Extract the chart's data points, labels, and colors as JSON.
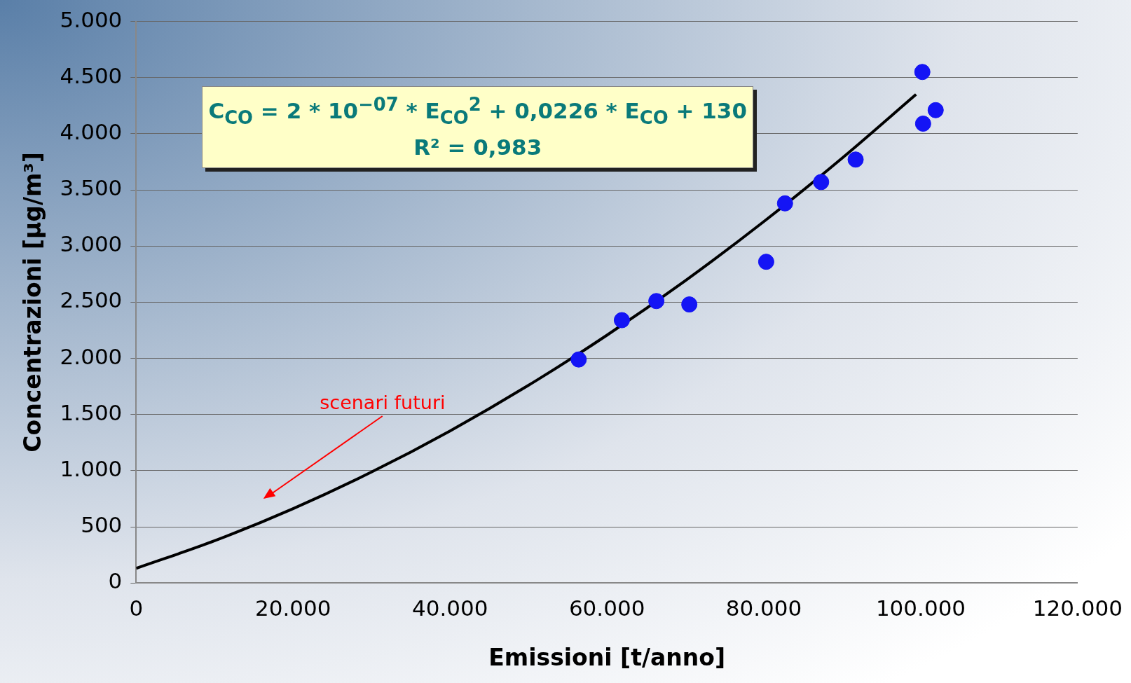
{
  "chart_data": {
    "type": "scatter",
    "xlabel": "Emissioni [t/anno]",
    "ylabel": "Concentrazioni [μg/m³]",
    "xlim": [
      0,
      120000
    ],
    "ylim": [
      0,
      5000
    ],
    "xticks": [
      0,
      {
        "value": 20000,
        "label": "20.000"
      },
      {
        "value": 40000,
        "label": "40.000"
      },
      {
        "value": 60000,
        "label": "60.000"
      },
      {
        "value": 80000,
        "label": "80.000"
      },
      {
        "value": 100000,
        "label": "100.000"
      },
      {
        "value": 120000,
        "label": "120.000"
      }
    ],
    "yticks": [
      0,
      500,
      {
        "value": 1000,
        "label": "1.000"
      },
      {
        "value": 1500,
        "label": "1.500"
      },
      {
        "value": 2000,
        "label": "2.000"
      },
      {
        "value": 2500,
        "label": "2.500"
      },
      {
        "value": 3000,
        "label": "3.000"
      },
      {
        "value": 3500,
        "label": "3.500"
      },
      {
        "value": 4000,
        "label": "4.000"
      },
      {
        "value": 4500,
        "label": "4.500"
      },
      {
        "value": 5000,
        "label": "5.000"
      }
    ],
    "grid": "y",
    "legend": false,
    "series": [
      {
        "marker": "circle",
        "color": "#1414f5",
        "x": [
          56400,
          61900,
          66300,
          70500,
          80300,
          82700,
          87300,
          91700,
          100200,
          100300,
          101900
        ],
        "values": [
          1990,
          2340,
          2510,
          2480,
          2860,
          3380,
          3570,
          3770,
          4550,
          4090,
          4210
        ]
      },
      {
        "type": "line",
        "marker": "none",
        "color": "#000000",
        "x": [
          0,
          10000,
          20000,
          30000,
          40000,
          50000,
          60000,
          70000,
          80000,
          90000,
          99400
        ],
        "values": [
          130,
          376,
          662,
          988,
          1354,
          1760,
          2206,
          2692,
          3218,
          3784,
          4350
        ]
      }
    ],
    "annotations": [
      "C$_{CO}$ = 2 * 10$^{−07}$ * E$_{CO}$$^{2}$ + 0,0226 * E$_{CO}$ + 130\nR² = 0,983",
      "scenari futuri"
    ]
  }
}
